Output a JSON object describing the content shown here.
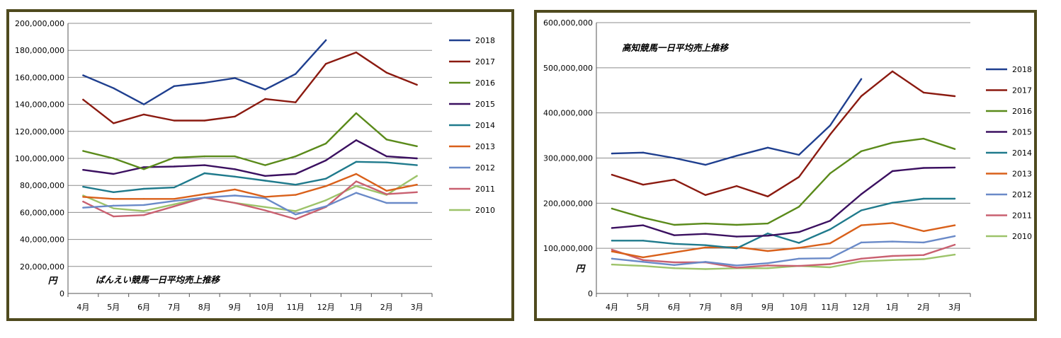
{
  "palette": {
    "2018": "#1f3f8f",
    "2017": "#8b1a10",
    "2016": "#5a8a1a",
    "2015": "#3b1060",
    "2014": "#1f7a8c",
    "2013": "#d9601a",
    "2012": "#6a8ac8",
    "2011": "#c96070",
    "2010": "#9dc36a"
  },
  "chart_data": [
    {
      "type": "line",
      "title": "ばんえい競馬一日平均売上推移",
      "ylabel": "円",
      "categories": [
        "4月",
        "5月",
        "6月",
        "7月",
        "8月",
        "9月",
        "10月",
        "11月",
        "12月",
        "1月",
        "2月",
        "3月"
      ],
      "yticks": [
        "0",
        "20,000,000",
        "40,000,000",
        "60,000,000",
        "80,000,000",
        "100,000,000",
        "120,000,000",
        "140,000,000",
        "160,000,000",
        "180,000,000",
        "200,000,000"
      ],
      "ylim": [
        0,
        200000000
      ],
      "grid": true,
      "legend": "right",
      "series": [
        {
          "name": "2018",
          "values": [
            161500000,
            152000000,
            140000000,
            153500000,
            156000000,
            159500000,
            151000000,
            162500000,
            187500000,
            null,
            null,
            null
          ]
        },
        {
          "name": "2017",
          "values": [
            143500000,
            126000000,
            132500000,
            128000000,
            128000000,
            131000000,
            144000000,
            141500000,
            170000000,
            178500000,
            163500000,
            154500000
          ]
        },
        {
          "name": "2016",
          "values": [
            105500000,
            100000000,
            92000000,
            100500000,
            101500000,
            101500000,
            95000000,
            101500000,
            111000000,
            133500000,
            114000000,
            109000000
          ]
        },
        {
          "name": "2015",
          "values": [
            91500000,
            88500000,
            93500000,
            94000000,
            95000000,
            92000000,
            87000000,
            88500000,
            98500000,
            113500000,
            101500000,
            100000000
          ]
        },
        {
          "name": "2014",
          "values": [
            79000000,
            75000000,
            77500000,
            78500000,
            89000000,
            86500000,
            83500000,
            80500000,
            85000000,
            97500000,
            97000000,
            95000000
          ]
        },
        {
          "name": "2013",
          "values": [
            71500000,
            70000000,
            70000000,
            70000000,
            73500000,
            77000000,
            71500000,
            73000000,
            79500000,
            88500000,
            76000000,
            80500000
          ]
        },
        {
          "name": "2012",
          "values": [
            63500000,
            65000000,
            65500000,
            68500000,
            71000000,
            72500000,
            70500000,
            58500000,
            64500000,
            74500000,
            67000000,
            67000000
          ]
        },
        {
          "name": "2011",
          "values": [
            68000000,
            57000000,
            58000000,
            64500000,
            71000000,
            67000000,
            61500000,
            55000000,
            64000000,
            83000000,
            73500000,
            75000000
          ]
        },
        {
          "name": "2010",
          "values": [
            72500000,
            63000000,
            61000000,
            66000000,
            71000000,
            67000000,
            64000000,
            61000000,
            69000000,
            79500000,
            73000000,
            87000000
          ]
        }
      ]
    },
    {
      "type": "line",
      "title": "高知競馬一日平均売上推移",
      "ylabel": "円",
      "categories": [
        "4月",
        "5月",
        "6月",
        "7月",
        "8月",
        "9月",
        "10月",
        "11月",
        "12月",
        "1月",
        "2月",
        "3月"
      ],
      "yticks": [
        "0",
        "100,000,000",
        "200,000,000",
        "300,000,000",
        "400,000,000",
        "500,000,000",
        "600,000,000"
      ],
      "ylim": [
        0,
        600000000
      ],
      "grid": true,
      "legend": "right",
      "series": [
        {
          "name": "2018",
          "values": [
            310000000,
            312000000,
            300000000,
            285000000,
            305000000,
            323000000,
            307000000,
            372000000,
            475000000,
            null,
            null,
            null
          ]
        },
        {
          "name": "2017",
          "values": [
            263000000,
            241000000,
            252000000,
            218000000,
            238000000,
            215000000,
            258000000,
            352000000,
            437000000,
            492000000,
            445000000,
            437000000
          ]
        },
        {
          "name": "2016",
          "values": [
            188000000,
            168000000,
            152000000,
            155000000,
            152000000,
            155000000,
            192000000,
            266000000,
            315000000,
            334000000,
            343000000,
            320000000
          ]
        },
        {
          "name": "2015",
          "values": [
            145000000,
            151000000,
            129000000,
            132000000,
            126000000,
            128000000,
            136000000,
            161000000,
            220000000,
            271000000,
            278000000,
            279000000
          ]
        },
        {
          "name": "2014",
          "values": [
            117000000,
            117000000,
            110000000,
            107000000,
            100000000,
            133000000,
            112000000,
            142000000,
            184000000,
            201000000,
            210000000,
            210000000
          ]
        },
        {
          "name": "2013",
          "values": [
            93000000,
            80000000,
            91000000,
            102000000,
            103000000,
            94000000,
            101000000,
            111000000,
            151000000,
            156000000,
            138000000,
            151000000
          ]
        },
        {
          "name": "2012",
          "values": [
            77000000,
            70000000,
            63000000,
            70000000,
            62000000,
            67000000,
            77000000,
            78000000,
            113000000,
            115000000,
            113000000,
            127000000
          ]
        },
        {
          "name": "2011",
          "values": [
            97000000,
            74000000,
            69000000,
            69000000,
            57000000,
            62000000,
            61000000,
            65000000,
            77000000,
            83000000,
            85000000,
            108000000
          ]
        },
        {
          "name": "2010",
          "values": [
            64000000,
            61000000,
            56000000,
            54000000,
            56000000,
            56000000,
            61000000,
            58000000,
            71000000,
            74000000,
            76000000,
            86000000
          ]
        }
      ]
    }
  ]
}
